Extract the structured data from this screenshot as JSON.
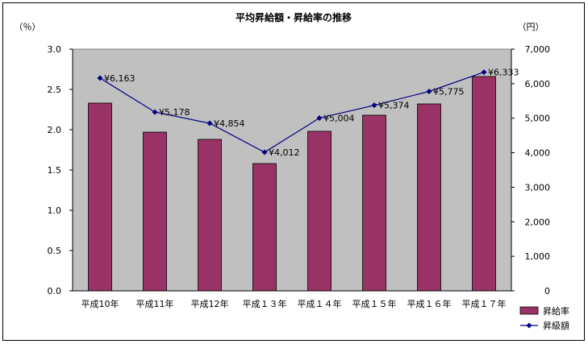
{
  "chart_data": {
    "type": "bar",
    "title": "平均昇給額・昇給率の推移",
    "left_unit": "（％）",
    "right_unit": "（円）",
    "categories": [
      "平成10年",
      "平成11年",
      "平成12年",
      "平成１３年",
      "平成１４年",
      "平成１５年",
      "平成１６年",
      "平成１７年"
    ],
    "series": [
      {
        "name": "昇給率",
        "type": "bar",
        "axis": "left",
        "color": "#993366",
        "values": [
          2.33,
          1.97,
          1.88,
          1.58,
          1.98,
          2.18,
          2.32,
          2.66
        ]
      },
      {
        "name": "昇級額",
        "type": "line",
        "axis": "right",
        "color": "#000080",
        "values": [
          6163,
          5178,
          4854,
          4012,
          5004,
          5374,
          5775,
          6333
        ],
        "labels": [
          "¥6,163",
          "¥5,178",
          "¥4,854",
          "¥4,012",
          "¥5,004",
          "¥5,374",
          "¥5,775",
          "¥6,333"
        ]
      }
    ],
    "y_left": {
      "min": 0,
      "max": 3,
      "ticks": [
        "0.0",
        "0.5",
        "1.0",
        "1.5",
        "2.0",
        "2.5",
        "3.0"
      ]
    },
    "y_right": {
      "min": 0,
      "max": 7000,
      "ticks": [
        "0",
        "1,000",
        "2,000",
        "3,000",
        "4,000",
        "5,000",
        "6,000",
        "7,000"
      ]
    },
    "plot_background": "#c0c0c0",
    "grid": false,
    "legend_position": "bottom-right"
  }
}
